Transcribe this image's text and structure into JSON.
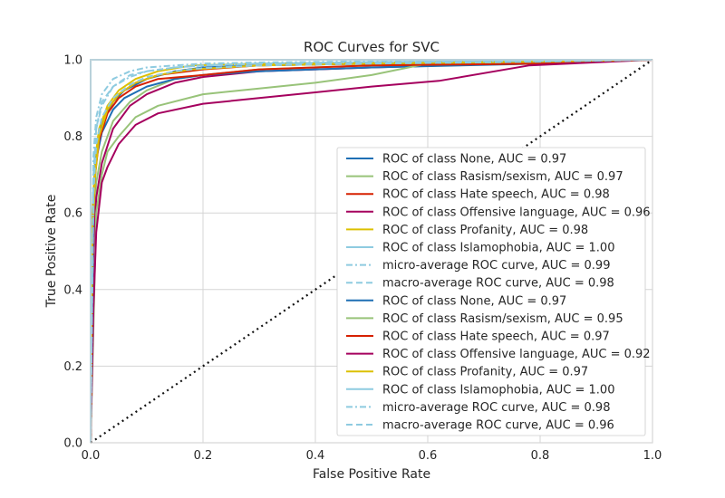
{
  "chart_data": {
    "type": "line",
    "title": "ROC Curves for SVC",
    "xlabel": "False Positive Rate",
    "ylabel": "True Positive Rate",
    "xlim": [
      0,
      1
    ],
    "ylim": [
      0,
      1
    ],
    "x_ticks": [
      "0.0",
      "0.2",
      "0.4",
      "0.6",
      "0.8",
      "1.0"
    ],
    "y_ticks": [
      "0.0",
      "0.2",
      "0.4",
      "0.6",
      "0.8",
      "1.0"
    ],
    "grid": true,
    "legend_position": "lower-right",
    "colors": {
      "none": "#1f6fb4",
      "rasism": "#98c379",
      "hate": "#d62000",
      "offensive": "#a5005e",
      "profanity": "#dcc000",
      "islam": "#8ecbe0",
      "chance": "#111111",
      "grid": "#d5d5d5",
      "frame": "#d5d5d5"
    },
    "series": [
      {
        "name": "ROC of class None, AUC = 0.97",
        "color": "#1f6fb4",
        "dash": "solid",
        "x": [
          0,
          0.005,
          0.01,
          0.02,
          0.04,
          0.06,
          0.1,
          0.15,
          0.2,
          0.3,
          0.5,
          0.8,
          1.0
        ],
        "y": [
          0,
          0.65,
          0.76,
          0.83,
          0.89,
          0.92,
          0.95,
          0.97,
          0.98,
          0.985,
          0.99,
          0.995,
          1.0
        ]
      },
      {
        "name": "ROC of class Rasism/sexism, AUC = 0.97",
        "color": "#98c379",
        "dash": "solid",
        "x": [
          0,
          0.005,
          0.01,
          0.02,
          0.04,
          0.07,
          0.1,
          0.15,
          0.2,
          0.3,
          0.5,
          0.7,
          1.0
        ],
        "y": [
          0,
          0.55,
          0.68,
          0.76,
          0.84,
          0.89,
          0.92,
          0.95,
          0.96,
          0.975,
          0.985,
          0.995,
          1.0
        ]
      },
      {
        "name": "ROC of class Hate speech, AUC = 0.98",
        "color": "#d62000",
        "dash": "solid",
        "x": [
          0,
          0.003,
          0.008,
          0.015,
          0.03,
          0.05,
          0.08,
          0.12,
          0.2,
          0.3,
          0.5,
          0.8,
          1.0
        ],
        "y": [
          0,
          0.58,
          0.72,
          0.8,
          0.87,
          0.91,
          0.94,
          0.96,
          0.975,
          0.985,
          0.99,
          0.995,
          1.0
        ]
      },
      {
        "name": "ROC of class Offensive language, AUC = 0.96",
        "color": "#a5005e",
        "dash": "solid",
        "x": [
          0,
          0.005,
          0.01,
          0.02,
          0.04,
          0.07,
          0.1,
          0.15,
          0.2,
          0.3,
          0.5,
          0.75,
          1.0
        ],
        "y": [
          0,
          0.5,
          0.64,
          0.73,
          0.82,
          0.88,
          0.91,
          0.94,
          0.955,
          0.97,
          0.98,
          0.99,
          1.0
        ]
      },
      {
        "name": "ROC of class Profanity, AUC = 0.98",
        "color": "#dcc000",
        "dash": "solid",
        "x": [
          0,
          0.003,
          0.008,
          0.015,
          0.03,
          0.05,
          0.08,
          0.12,
          0.18,
          0.3,
          0.5,
          0.8,
          1.0
        ],
        "y": [
          0,
          0.6,
          0.74,
          0.82,
          0.88,
          0.92,
          0.95,
          0.97,
          0.985,
          0.99,
          0.993,
          0.997,
          1.0
        ]
      },
      {
        "name": "ROC of class Islamophobia, AUC = 1.00",
        "color": "#8ecbe0",
        "dash": "solid",
        "x": [
          0,
          0.0,
          0.01,
          0.03,
          1.0
        ],
        "y": [
          0,
          1.0,
          1.0,
          1.0,
          1.0
        ]
      },
      {
        "name": "micro-average ROC curve, AUC = 0.99",
        "color": "#8ecbe0",
        "dash": "dashdot",
        "x": [
          0,
          0.005,
          0.01,
          0.02,
          0.04,
          0.07,
          0.1,
          0.15,
          0.2,
          0.3,
          0.5,
          0.8,
          1.0
        ],
        "y": [
          0,
          0.75,
          0.85,
          0.91,
          0.95,
          0.97,
          0.98,
          0.985,
          0.99,
          0.993,
          0.996,
          0.998,
          1.0
        ]
      },
      {
        "name": "macro-average ROC curve, AUC = 0.98",
        "color": "#8ecbe0",
        "dash": "dashed",
        "x": [
          0,
          0.005,
          0.01,
          0.02,
          0.04,
          0.07,
          0.1,
          0.15,
          0.2,
          0.3,
          0.5,
          0.8,
          1.0
        ],
        "y": [
          0,
          0.7,
          0.82,
          0.89,
          0.93,
          0.96,
          0.97,
          0.98,
          0.985,
          0.99,
          0.994,
          0.997,
          1.0
        ]
      },
      {
        "name": "ROC of class None, AUC = 0.97",
        "color": "#1f6fb4",
        "dash": "solid",
        "x": [
          0,
          0.005,
          0.01,
          0.02,
          0.04,
          0.06,
          0.1,
          0.15,
          0.2,
          0.3,
          0.5,
          0.8,
          1.0
        ],
        "y": [
          0,
          0.62,
          0.74,
          0.81,
          0.87,
          0.9,
          0.93,
          0.95,
          0.96,
          0.97,
          0.98,
          0.99,
          1.0
        ]
      },
      {
        "name": "ROC of class Rasism/sexism, AUC = 0.95",
        "color": "#98c379",
        "dash": "solid",
        "x": [
          0,
          0.01,
          0.02,
          0.03,
          0.05,
          0.08,
          0.12,
          0.2,
          0.3,
          0.4,
          0.5,
          0.6,
          1.0
        ],
        "y": [
          0,
          0.6,
          0.7,
          0.76,
          0.8,
          0.85,
          0.88,
          0.91,
          0.925,
          0.94,
          0.96,
          0.99,
          1.0
        ]
      },
      {
        "name": "ROC of class Hate speech, AUC = 0.97",
        "color": "#d62000",
        "dash": "solid",
        "x": [
          0,
          0.003,
          0.008,
          0.015,
          0.03,
          0.05,
          0.08,
          0.12,
          0.2,
          0.3,
          0.5,
          0.8,
          1.0
        ],
        "y": [
          0,
          0.55,
          0.7,
          0.79,
          0.86,
          0.9,
          0.93,
          0.95,
          0.96,
          0.975,
          0.985,
          0.99,
          1.0
        ]
      },
      {
        "name": "ROC of class Offensive language, AUC = 0.92",
        "color": "#a5005e",
        "dash": "solid",
        "x": [
          0,
          0.005,
          0.01,
          0.02,
          0.03,
          0.05,
          0.08,
          0.12,
          0.2,
          0.3,
          0.4,
          0.5,
          0.62,
          0.78,
          1.0
        ],
        "y": [
          0,
          0.35,
          0.55,
          0.68,
          0.72,
          0.78,
          0.83,
          0.86,
          0.885,
          0.9,
          0.915,
          0.93,
          0.945,
          0.985,
          1.0
        ]
      },
      {
        "name": "ROC of class Profanity, AUC = 0.97",
        "color": "#dcc000",
        "dash": "solid",
        "x": [
          0,
          0.003,
          0.008,
          0.015,
          0.03,
          0.05,
          0.08,
          0.12,
          0.18,
          0.3,
          0.5,
          0.8,
          1.0
        ],
        "y": [
          0,
          0.55,
          0.7,
          0.8,
          0.87,
          0.91,
          0.94,
          0.96,
          0.975,
          0.985,
          0.99,
          0.995,
          1.0
        ]
      },
      {
        "name": "ROC of class Islamophobia, AUC = 1.00",
        "color": "#8ecbe0",
        "dash": "solid",
        "x": [
          0,
          0.0,
          0.02,
          1.0
        ],
        "y": [
          0,
          1.0,
          1.0,
          1.0
        ]
      },
      {
        "name": "micro-average ROC curve, AUC = 0.98",
        "color": "#8ecbe0",
        "dash": "dashdot",
        "x": [
          0,
          0.005,
          0.01,
          0.02,
          0.04,
          0.07,
          0.1,
          0.15,
          0.2,
          0.3,
          0.5,
          0.8,
          1.0
        ],
        "y": [
          0,
          0.7,
          0.82,
          0.88,
          0.93,
          0.955,
          0.97,
          0.98,
          0.985,
          0.99,
          0.994,
          0.997,
          1.0
        ]
      },
      {
        "name": "macro-average ROC curve, AUC = 0.96",
        "color": "#8ecbe0",
        "dash": "dashed",
        "x": [
          0,
          0.005,
          0.01,
          0.02,
          0.04,
          0.07,
          0.1,
          0.15,
          0.2,
          0.3,
          0.5,
          0.8,
          1.0
        ],
        "y": [
          0,
          0.65,
          0.78,
          0.85,
          0.9,
          0.935,
          0.955,
          0.97,
          0.978,
          0.985,
          0.99,
          0.995,
          1.0
        ]
      }
    ],
    "reference_line": {
      "x": [
        0,
        1
      ],
      "y": [
        0,
        1
      ],
      "color": "#111111",
      "dash": "dotted"
    }
  }
}
